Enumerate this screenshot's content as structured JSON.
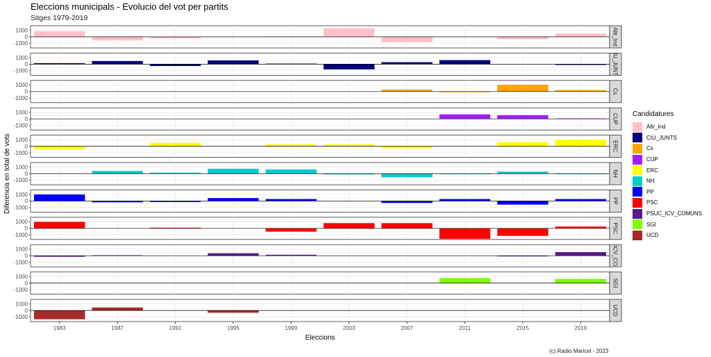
{
  "title": "Eleccions municipals - Evolucio del vot per partits",
  "subtitle": "Sitges 1979-2019",
  "caption": "(c) Radio Maricel - 2023",
  "legend_title": "Candidatures",
  "chart_data": {
    "type": "bar",
    "layout": "facet-grid",
    "title": "Eleccions municipals - Evolucio del vot per partits",
    "subtitle": "Sitges 1979-2019",
    "xlabel": "Eleccions",
    "ylabel": "Diferencia en total de vots",
    "ylim": [
      -1700,
      1700
    ],
    "yticks": [
      1000,
      0,
      -1000
    ],
    "categories": [
      "1983",
      "1987",
      "1991",
      "1995",
      "1999",
      "2003",
      "2007",
      "2011",
      "2015",
      "2019"
    ],
    "legend_position": "right",
    "grid": true,
    "facets": [
      {
        "label": "Altr_Ind",
        "name": "Altr_Ind",
        "color": "#FFC0CB",
        "values": [
          850,
          -550,
          -250,
          null,
          80,
          1300,
          -850,
          null,
          -350,
          500
        ]
      },
      {
        "label": "IU_JUNT",
        "name": "CIU_JUNTS",
        "color": "#000080",
        "values": [
          150,
          480,
          -280,
          580,
          90,
          -800,
          300,
          620,
          null,
          -120
        ]
      },
      {
        "label": "Cs",
        "name": "Cs",
        "color": "#FFA500",
        "values": [
          null,
          null,
          null,
          null,
          null,
          null,
          300,
          -120,
          1050,
          230
        ]
      },
      {
        "label": "CUP",
        "name": "CUP",
        "color": "#A020F0",
        "values": [
          null,
          null,
          null,
          null,
          null,
          null,
          null,
          700,
          580,
          80
        ]
      },
      {
        "label": "ERC",
        "name": "ERC",
        "color": "#FFFF00",
        "values": [
          -450,
          null,
          520,
          null,
          300,
          300,
          -300,
          null,
          650,
          1000
        ]
      },
      {
        "label": "NH",
        "name": "NH",
        "color": "#00CED1",
        "values": [
          null,
          400,
          150,
          750,
          650,
          -120,
          -550,
          -80,
          300,
          -80
        ]
      },
      {
        "label": "PP",
        "name": "PP",
        "color": "#0000FF",
        "values": [
          1000,
          -200,
          -150,
          450,
          300,
          null,
          -300,
          300,
          -550,
          300
        ]
      },
      {
        "label": "PSC",
        "name": "PSC",
        "color": "#FF0000",
        "values": [
          1000,
          null,
          100,
          null,
          -500,
          800,
          800,
          -1600,
          -1150,
          280
        ]
      },
      {
        "label": "ICV_CO",
        "name": "PSUC_ICV_COMUNS",
        "color": "#551A8B",
        "values": [
          -150,
          80,
          null,
          380,
          150,
          null,
          null,
          null,
          -100,
          550
        ]
      },
      {
        "label": "SGI",
        "name": "SGI",
        "color": "#7FFF00",
        "values": [
          null,
          null,
          null,
          null,
          null,
          null,
          null,
          780,
          null,
          650
        ]
      },
      {
        "label": "UCD",
        "name": "UCD",
        "color": "#A52A2A",
        "values": [
          -1350,
          450,
          null,
          -350,
          null,
          null,
          null,
          null,
          null,
          null
        ]
      }
    ]
  }
}
